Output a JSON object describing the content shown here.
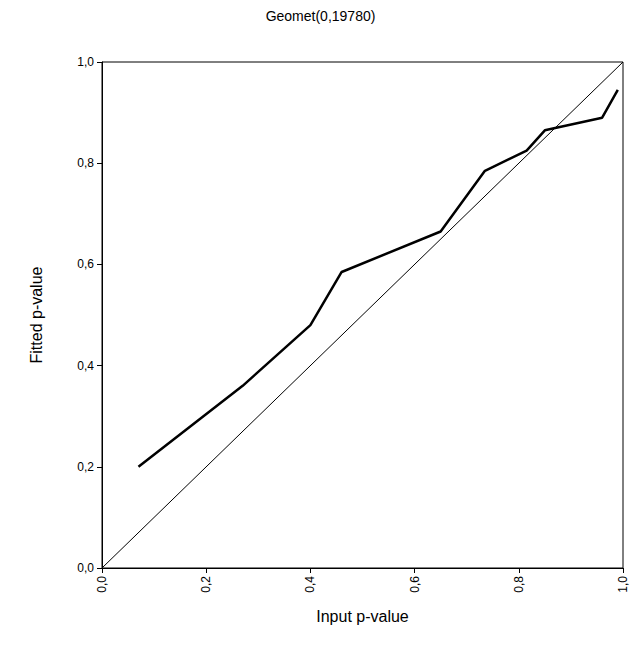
{
  "chart_data": {
    "type": "line",
    "title": "Geomet(0,19780)",
    "x_label": "Input p-value",
    "y_label": "Fitted p-value",
    "series": [
      {
        "x": [
          0.07,
          0.27,
          0.4,
          0.46,
          0.65,
          0.735,
          0.815,
          0.85,
          0.96,
          0.99
        ],
        "values": [
          0.2,
          0.36,
          0.48,
          0.585,
          0.665,
          0.785,
          0.825,
          0.865,
          0.89,
          0.945
        ],
        "color": "#000000",
        "line_style": "thick"
      },
      {
        "x": [
          0,
          1
        ],
        "values": [
          0,
          1
        ],
        "color": "#000000",
        "line_style": "thin"
      }
    ],
    "xlim": [
      0,
      1
    ],
    "ylim": [
      0,
      1
    ],
    "xticks": [
      {
        "value": 0,
        "label": "0,0"
      },
      {
        "value": 0.2,
        "label": "0,2"
      },
      {
        "value": 0.4,
        "label": "0,4"
      },
      {
        "value": 0.6,
        "label": "0,6"
      },
      {
        "value": 0.8,
        "label": "0,8"
      },
      {
        "value": 1,
        "label": "1,0"
      }
    ],
    "yticks": [
      {
        "value": 0,
        "label": "0,0"
      },
      {
        "value": 0.2,
        "label": "0,2"
      },
      {
        "value": 0.4,
        "label": "0,4"
      },
      {
        "value": 0.6,
        "label": "0,6"
      },
      {
        "value": 0.8,
        "label": "0,8"
      },
      {
        "value": 1,
        "label": "1,0"
      }
    ],
    "grid": false
  }
}
